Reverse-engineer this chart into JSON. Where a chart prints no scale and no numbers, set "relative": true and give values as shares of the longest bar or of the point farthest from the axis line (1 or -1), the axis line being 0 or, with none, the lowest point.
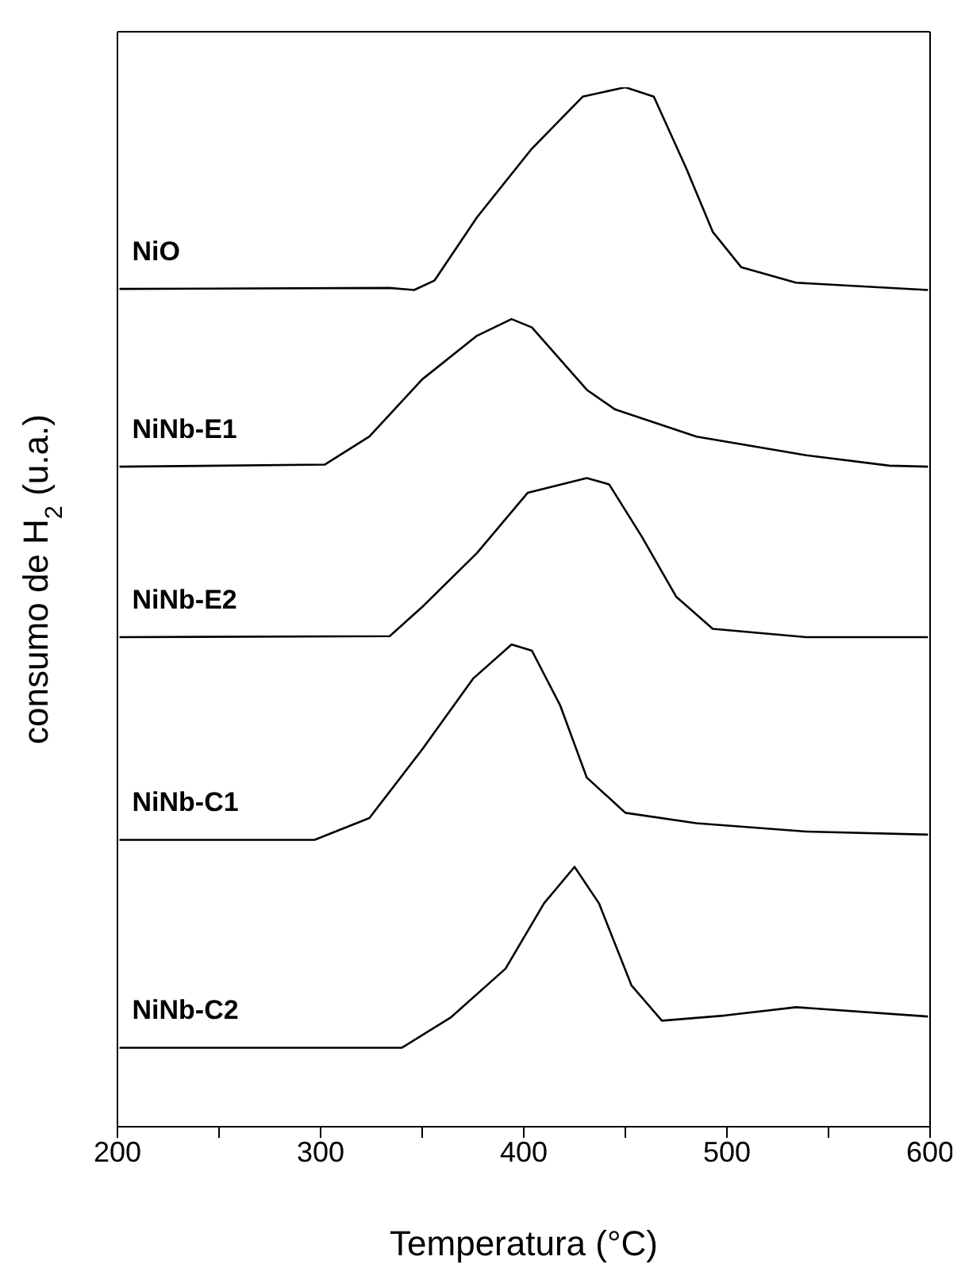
{
  "chart_data": {
    "type": "line",
    "relative": true,
    "xlabel": "Temperatura (°C)",
    "ylabel": "consumo de H$_{2}$ (u.a.)",
    "xlim": [
      200,
      600
    ],
    "xticks": [
      200,
      {
        "value": 250,
        "label": null
      },
      300,
      {
        "value": 350,
        "label": null
      },
      400,
      {
        "value": 450,
        "label": null
      },
      500,
      {
        "value": 550,
        "label": null
      },
      600
    ],
    "marker": "none",
    "line_style": "solid",
    "series": [
      {
        "name": "NiO",
        "color": "#000000",
        "x": [
          201,
          334,
          346,
          356,
          377,
          404,
          429,
          450,
          464,
          480,
          493,
          507,
          534,
          599
        ],
        "values": [
          0.806,
          0.807,
          0.805,
          0.814,
          0.875,
          0.941,
          0.991,
          1.0,
          0.991,
          0.922,
          0.861,
          0.827,
          0.812,
          0.805
        ]
      },
      {
        "name": "NiNb-E1",
        "color": "#000000",
        "x": [
          201,
          302,
          324,
          350,
          377,
          394,
          404,
          431,
          445,
          485,
          539,
          580,
          599
        ],
        "values": [
          0.635,
          0.637,
          0.664,
          0.719,
          0.761,
          0.777,
          0.769,
          0.709,
          0.69,
          0.664,
          0.646,
          0.636,
          0.635
        ]
      },
      {
        "name": "NiNb-E2",
        "color": "#000000",
        "x": [
          201,
          334,
          350,
          377,
          402,
          431,
          442,
          458,
          475,
          493,
          539,
          599
        ],
        "values": [
          0.471,
          0.472,
          0.5,
          0.552,
          0.61,
          0.624,
          0.618,
          0.568,
          0.51,
          0.479,
          0.471,
          0.471
        ]
      },
      {
        "name": "NiNb-C1",
        "color": "#000000",
        "x": [
          201,
          297,
          324,
          350,
          375,
          394,
          404,
          418,
          431,
          450,
          485,
          539,
          599
        ],
        "values": [
          0.276,
          0.276,
          0.297,
          0.363,
          0.431,
          0.464,
          0.458,
          0.405,
          0.336,
          0.302,
          0.292,
          0.284,
          0.281
        ]
      },
      {
        "name": "NiNb-C2",
        "color": "#000000",
        "x": [
          201,
          340,
          364,
          391,
          410,
          425,
          437,
          453,
          468,
          499,
          534,
          599
        ],
        "values": [
          0.076,
          0.076,
          0.105,
          0.152,
          0.215,
          0.25,
          0.215,
          0.136,
          0.102,
          0.107,
          0.115,
          0.106
        ]
      }
    ]
  }
}
